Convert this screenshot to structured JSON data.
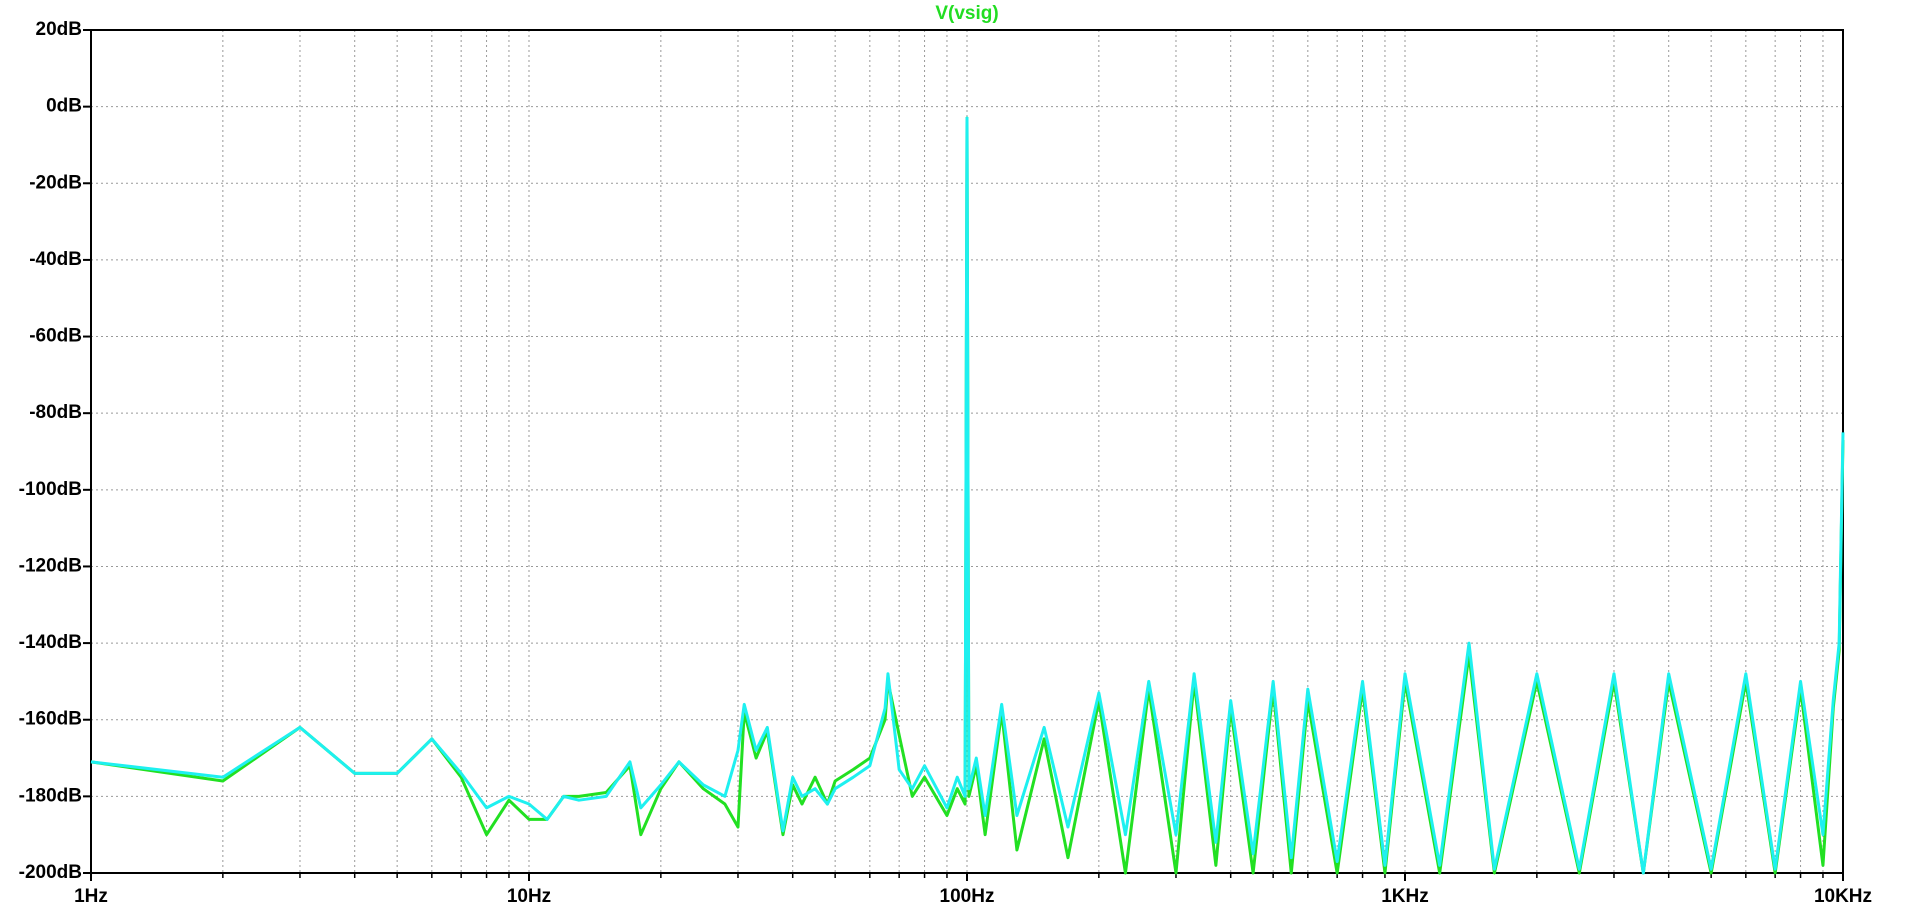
{
  "chart_data": {
    "type": "line",
    "title": "V(vsig)",
    "title_color": "#22dd22",
    "x": [
      1,
      2,
      3,
      4,
      5,
      6,
      7,
      8,
      9,
      10,
      11,
      12,
      13,
      15,
      17,
      18,
      20,
      22,
      25,
      28,
      30,
      31,
      33,
      35,
      38,
      40,
      42,
      45,
      48,
      50,
      55,
      60,
      65,
      66,
      70,
      75,
      80,
      90,
      95,
      99,
      100,
      101,
      105,
      110,
      120,
      130,
      150,
      170,
      200,
      230,
      260,
      300,
      330,
      370,
      400,
      450,
      500,
      550,
      600,
      700,
      800,
      900,
      1000,
      1200,
      1400,
      1600,
      2000,
      2500,
      3000,
      3500,
      4000,
      5000,
      6000,
      7000,
      8000,
      9000,
      9500,
      9800,
      10000
    ],
    "series": [
      {
        "color": "#22e022",
        "values": [
          -171,
          -176,
          -162,
          -174,
          -174,
          -165,
          -175,
          -190,
          -181,
          -186,
          -186,
          -180,
          -180,
          -179,
          -172,
          -190,
          -178,
          -171,
          -178,
          -182,
          -188,
          -158,
          -170,
          -163,
          -190,
          -177,
          -182,
          -175,
          -182,
          -176,
          -173,
          -170,
          -160,
          -150,
          -164,
          -180,
          -175,
          -185,
          -178,
          -182,
          -3,
          -180,
          -172,
          -190,
          -158,
          -194,
          -165,
          -196,
          -155,
          -200,
          -152,
          -200,
          -150,
          -198,
          -157,
          -200,
          -152,
          -200,
          -155,
          -200,
          -152,
          -200,
          -150,
          -200,
          -143,
          -200,
          -150,
          -200,
          -150,
          -200,
          -150,
          -200,
          -150,
          -200,
          -152,
          -198,
          -157,
          -142,
          -87
        ]
      },
      {
        "color": "#1ef0f0",
        "values": [
          -171,
          -175,
          -162,
          -174,
          -174,
          -165,
          -174,
          -183,
          -180,
          -182,
          -186,
          -180,
          -181,
          -180,
          -171,
          -183,
          -177,
          -171,
          -177,
          -180,
          -168,
          -156,
          -168,
          -162,
          -189,
          -175,
          -180,
          -178,
          -182,
          -178,
          -175,
          -172,
          -157,
          -148,
          -173,
          -178,
          -172,
          -183,
          -175,
          -180,
          -3,
          -178,
          -170,
          -185,
          -156,
          -185,
          -162,
          -188,
          -153,
          -190,
          -150,
          -190,
          -148,
          -192,
          -155,
          -195,
          -150,
          -196,
          -152,
          -197,
          -150,
          -198,
          -148,
          -198,
          -140,
          -199,
          -148,
          -199,
          -148,
          -200,
          -148,
          -199,
          -148,
          -199,
          -150,
          -190,
          -155,
          -140,
          -85
        ]
      }
    ],
    "xscale": "log",
    "xlim": [
      1,
      10000
    ],
    "xticks": [
      {
        "value": 1,
        "label": "1Hz"
      },
      {
        "value": 10,
        "label": "10Hz"
      },
      {
        "value": 100,
        "label": "100Hz"
      },
      {
        "value": 1000,
        "label": "1KHz"
      },
      {
        "value": 10000,
        "label": "10KHz"
      }
    ],
    "xminorticks": [
      2,
      3,
      4,
      5,
      6,
      7,
      8,
      9,
      20,
      30,
      40,
      50,
      60,
      70,
      80,
      90,
      200,
      300,
      400,
      500,
      600,
      700,
      800,
      900,
      2000,
      3000,
      4000,
      5000,
      6000,
      7000,
      8000,
      9000
    ],
    "ylim": [
      -200,
      20
    ],
    "yticks": [
      {
        "value": -200,
        "label": "-200dB"
      },
      {
        "value": -180,
        "label": "-180dB"
      },
      {
        "value": -160,
        "label": "-160dB"
      },
      {
        "value": -140,
        "label": "-140dB"
      },
      {
        "value": -120,
        "label": "-120dB"
      },
      {
        "value": -100,
        "label": "-100dB"
      },
      {
        "value": -80,
        "label": "-80dB"
      },
      {
        "value": -60,
        "label": "-60dB"
      },
      {
        "value": -40,
        "label": "-40dB"
      },
      {
        "value": -20,
        "label": "-20dB"
      },
      {
        "value": 0,
        "label": "0dB"
      },
      {
        "value": 20,
        "label": "20dB"
      }
    ],
    "grid": true
  }
}
